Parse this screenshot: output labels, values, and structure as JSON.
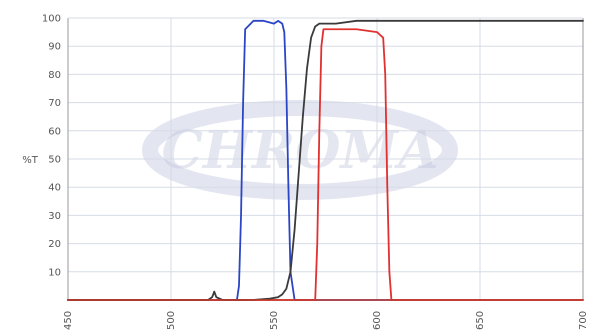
{
  "chart_data": {
    "type": "line",
    "title": "",
    "xlabel": "",
    "ylabel": "%T",
    "xlim": [
      450,
      700
    ],
    "ylim": [
      0,
      100
    ],
    "x_ticks": [
      450,
      500,
      550,
      600,
      650,
      700
    ],
    "y_ticks": [
      10,
      20,
      30,
      40,
      50,
      60,
      70,
      80,
      90,
      100
    ],
    "grid": true,
    "legend": "none",
    "colors": {
      "grid": "#d6dbe6",
      "frame": "#9a9a9a",
      "baseline": "#c63a2a",
      "watermark": "#b7bdd6"
    },
    "watermark": "CHROMA",
    "series": [
      {
        "color": "#2b45c6",
        "x": [
          450,
          532,
          533,
          534,
          535,
          536,
          540,
          545,
          550,
          552,
          554,
          555,
          556,
          557,
          558,
          560,
          700
        ],
        "y": [
          0,
          0,
          5,
          30,
          70,
          96,
          99,
          99,
          98,
          99,
          98,
          95,
          75,
          40,
          10,
          0,
          0
        ]
      },
      {
        "color": "#e03030",
        "x": [
          450,
          570,
          571,
          572,
          573,
          574,
          575,
          580,
          590,
          600,
          603,
          604,
          605,
          606,
          607,
          700
        ],
        "y": [
          0,
          0,
          20,
          60,
          90,
          96,
          96,
          96,
          96,
          95,
          93,
          80,
          40,
          10,
          0,
          0
        ]
      },
      {
        "color": "#3a3a3a",
        "x": [
          450,
          510,
          518,
          520,
          521,
          522,
          525,
          540,
          548,
          552,
          554,
          556,
          558,
          560,
          562,
          564,
          566,
          568,
          570,
          572,
          575,
          580,
          590,
          600,
          650,
          700
        ],
        "y": [
          0,
          0,
          0,
          1,
          3,
          1,
          0,
          0,
          0.5,
          1,
          2,
          4,
          10,
          25,
          45,
          65,
          82,
          93,
          97,
          98,
          98,
          98,
          99,
          99,
          99,
          99
        ]
      }
    ]
  }
}
